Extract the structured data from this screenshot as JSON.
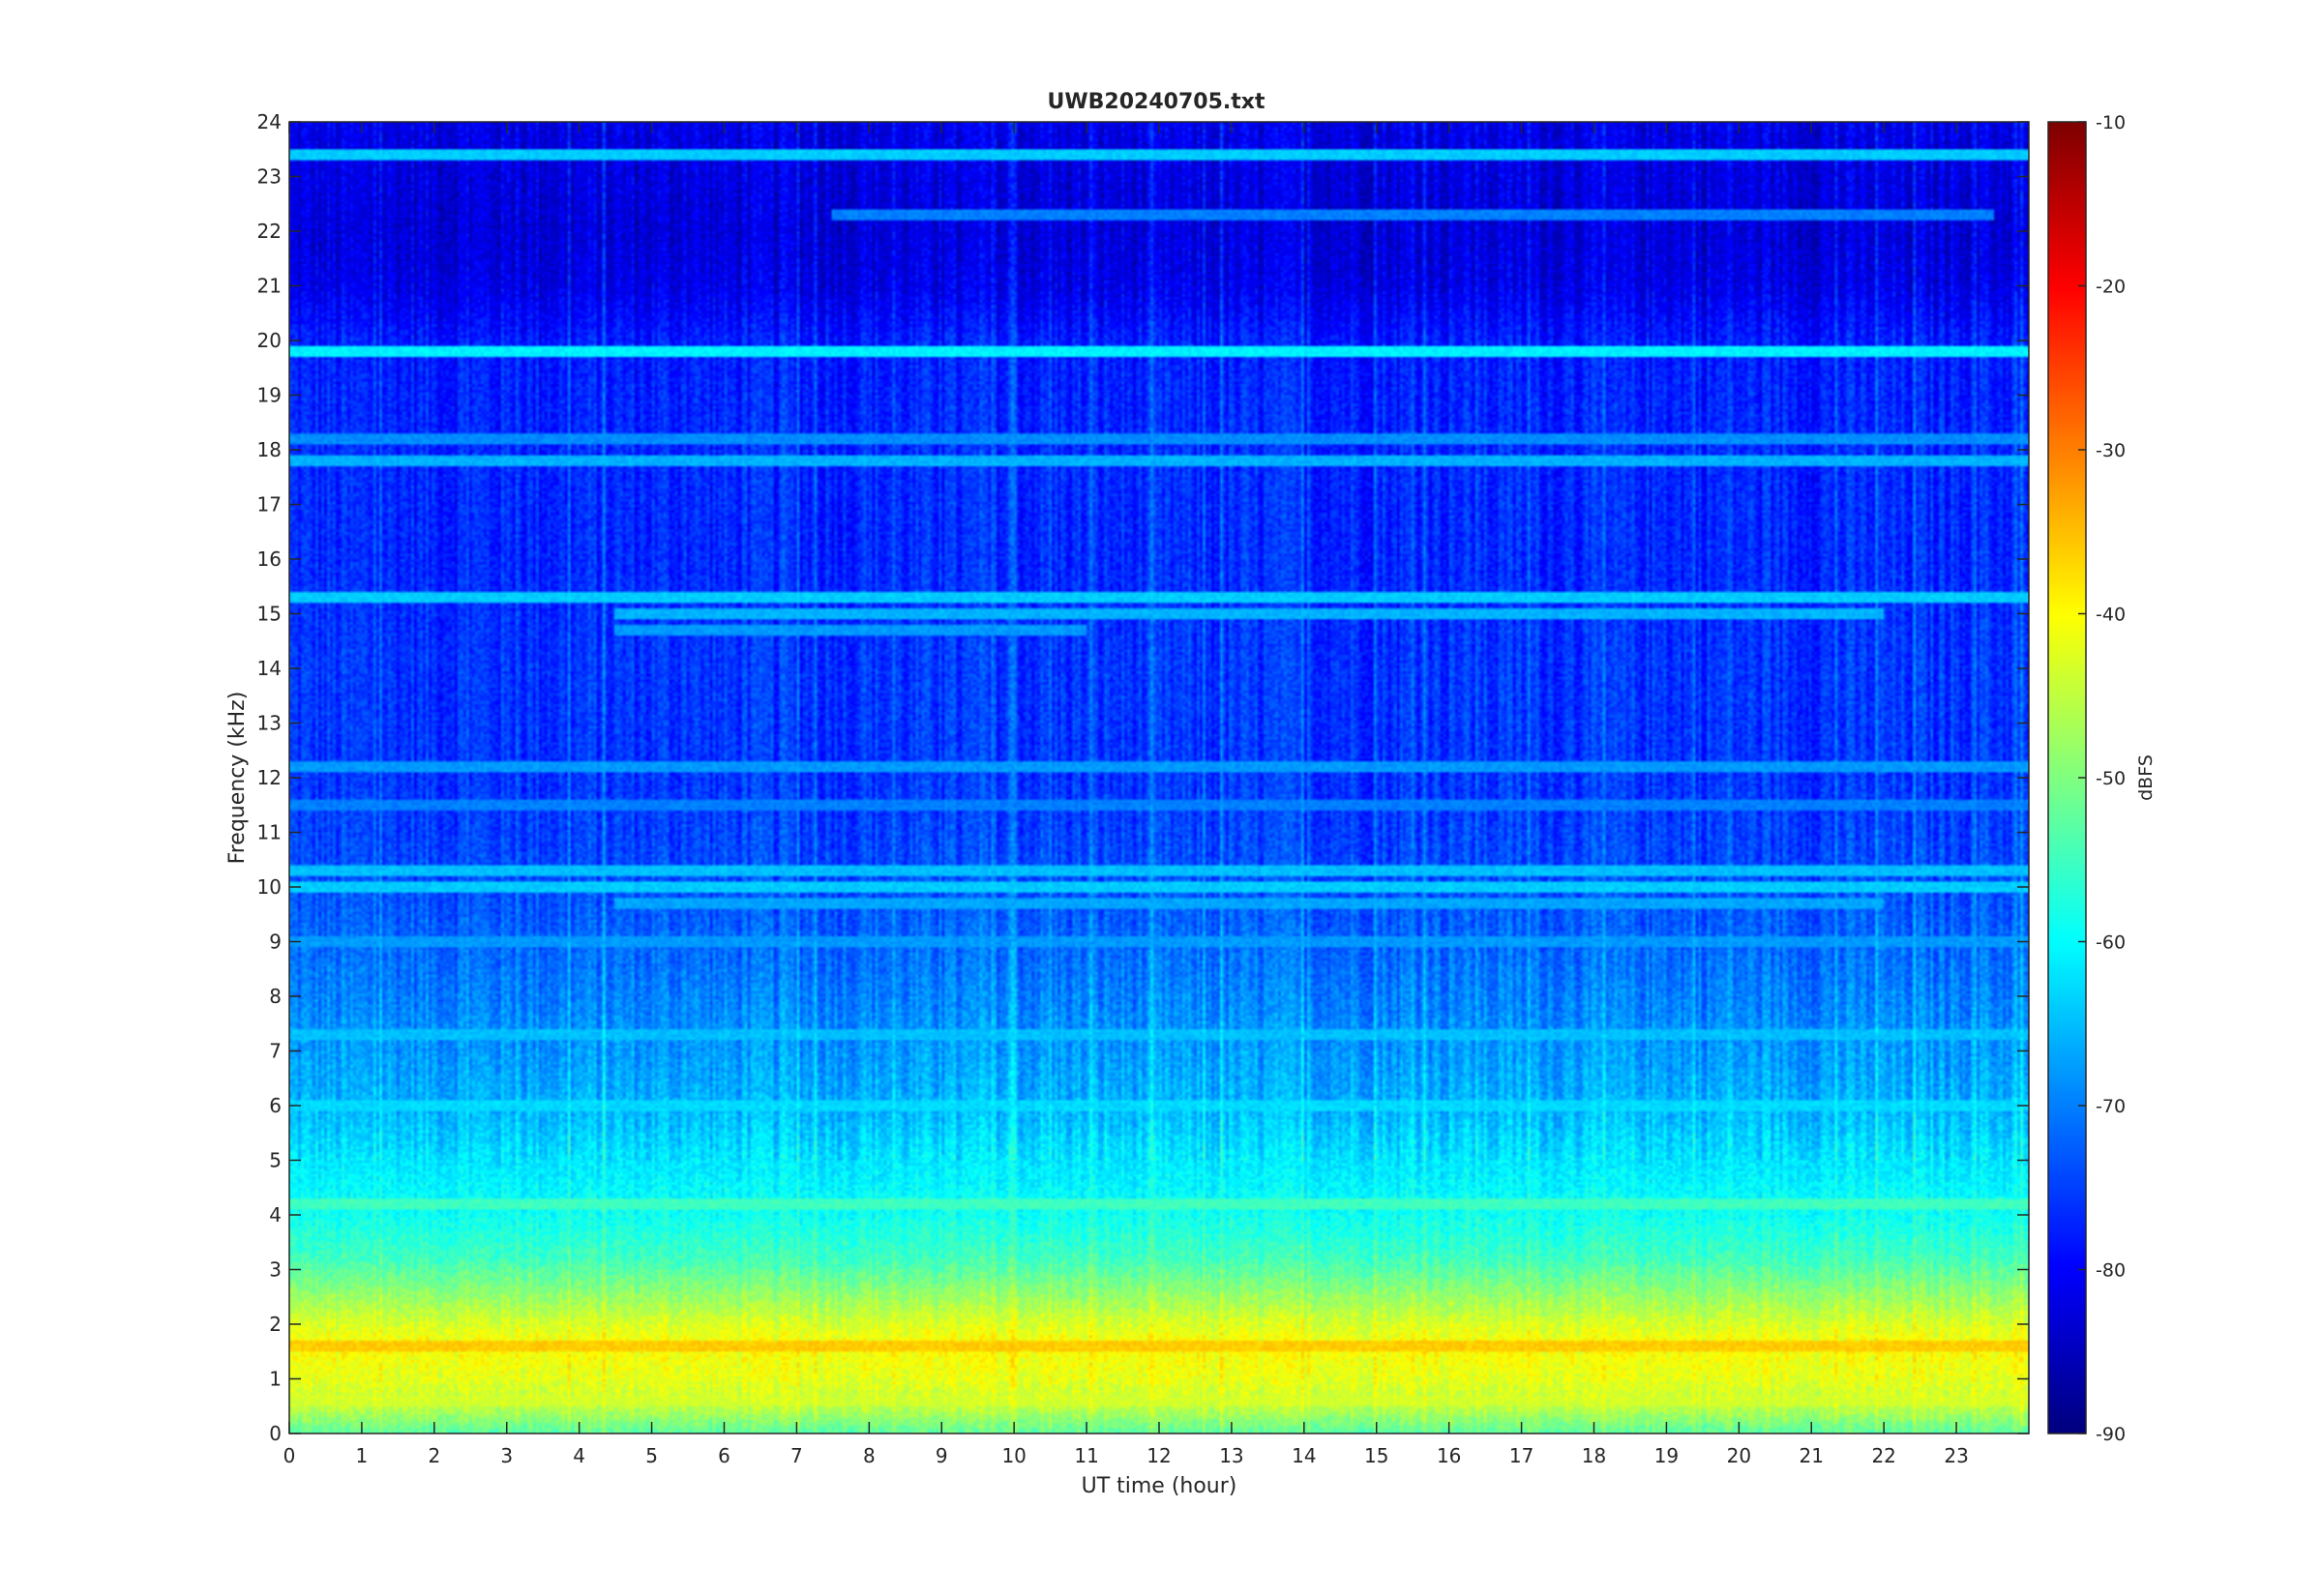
{
  "chart_data": {
    "type": "heatmap",
    "title": "UWB20240705.txt",
    "xlabel": "UT time (hour)",
    "ylabel": "Frequency (kHz)",
    "xlim": [
      0,
      24
    ],
    "ylim": [
      0,
      24
    ],
    "x_ticks": [
      0,
      1,
      2,
      3,
      4,
      5,
      6,
      7,
      8,
      9,
      10,
      11,
      12,
      13,
      14,
      15,
      16,
      17,
      18,
      19,
      20,
      21,
      22,
      23
    ],
    "y_ticks": [
      0,
      1,
      2,
      3,
      4,
      5,
      6,
      7,
      8,
      9,
      10,
      11,
      12,
      13,
      14,
      15,
      16,
      17,
      18,
      19,
      20,
      21,
      22,
      23,
      24
    ],
    "colorbar": {
      "label": "dBFS",
      "range": [
        -90,
        -10
      ],
      "ticks": [
        -90,
        -80,
        -70,
        -60,
        -50,
        -40,
        -30,
        -20,
        -10
      ],
      "colormap": "jet"
    },
    "grid": false,
    "spectrogram": {
      "background_profile": [
        {
          "f": 0.0,
          "db": -53
        },
        {
          "f": 0.5,
          "db": -45
        },
        {
          "f": 1.0,
          "db": -42
        },
        {
          "f": 1.6,
          "db": -40
        },
        {
          "f": 2.0,
          "db": -43
        },
        {
          "f": 2.6,
          "db": -49
        },
        {
          "f": 3.2,
          "db": -55
        },
        {
          "f": 4.0,
          "db": -59
        },
        {
          "f": 5.0,
          "db": -62
        },
        {
          "f": 6.0,
          "db": -66
        },
        {
          "f": 7.0,
          "db": -68
        },
        {
          "f": 8.0,
          "db": -70
        },
        {
          "f": 9.0,
          "db": -72
        },
        {
          "f": 10.0,
          "db": -74
        },
        {
          "f": 12.0,
          "db": -76
        },
        {
          "f": 14.0,
          "db": -76
        },
        {
          "f": 16.0,
          "db": -77
        },
        {
          "f": 18.0,
          "db": -77
        },
        {
          "f": 20.0,
          "db": -78
        },
        {
          "f": 21.0,
          "db": -82
        },
        {
          "f": 22.0,
          "db": -83
        },
        {
          "f": 24.0,
          "db": -82
        }
      ],
      "tonal_lines": [
        {
          "f": 19.8,
          "db": -61,
          "from": 0,
          "to": 24
        },
        {
          "f": 23.4,
          "db": -64,
          "from": 0,
          "to": 24
        },
        {
          "f": 22.3,
          "db": -70,
          "from": 7.5,
          "to": 23.5
        },
        {
          "f": 18.2,
          "db": -69,
          "from": 0,
          "to": 24
        },
        {
          "f": 17.8,
          "db": -66,
          "from": 0,
          "to": 24
        },
        {
          "f": 15.3,
          "db": -64,
          "from": 0,
          "to": 24
        },
        {
          "f": 15.0,
          "db": -66,
          "from": 4.5,
          "to": 22
        },
        {
          "f": 14.7,
          "db": -68,
          "from": 4.5,
          "to": 11
        },
        {
          "f": 12.2,
          "db": -68,
          "from": 0,
          "to": 24
        },
        {
          "f": 11.5,
          "db": -70,
          "from": 0,
          "to": 24
        },
        {
          "f": 10.3,
          "db": -65,
          "from": 0,
          "to": 24
        },
        {
          "f": 10.0,
          "db": -64,
          "from": 0,
          "to": 24
        },
        {
          "f": 9.7,
          "db": -67,
          "from": 4.5,
          "to": 22
        },
        {
          "f": 9.0,
          "db": -68,
          "from": 0,
          "to": 24
        },
        {
          "f": 7.3,
          "db": -65,
          "from": 0,
          "to": 24
        },
        {
          "f": 6.0,
          "db": -63,
          "from": 0,
          "to": 24
        },
        {
          "f": 4.2,
          "db": -55,
          "from": 0,
          "to": 24
        },
        {
          "f": 1.6,
          "db": -36,
          "from": 0,
          "to": 24
        },
        {
          "f": 0.6,
          "db": -44,
          "from": 0,
          "to": 24
        }
      ]
    }
  }
}
